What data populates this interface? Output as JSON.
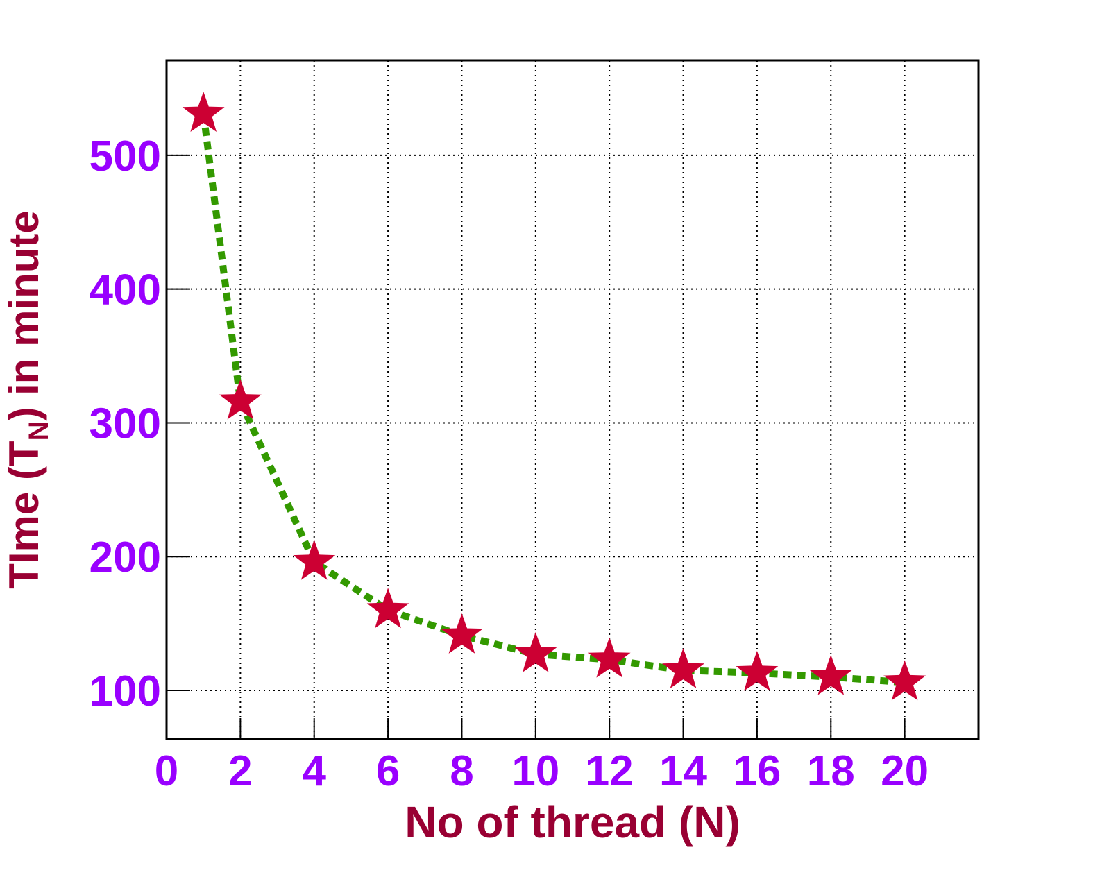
{
  "chart_data": {
    "type": "line",
    "x": [
      1,
      2,
      4,
      6,
      8,
      10,
      12,
      14,
      16,
      18,
      20
    ],
    "series": [
      {
        "color": "#cc0033",
        "line_color": "#339900",
        "values": [
          531,
          316,
          196,
          160,
          141,
          127,
          123,
          115,
          113,
          110,
          106
        ]
      }
    ],
    "xlim": [
      0,
      22
    ],
    "xticks": [
      0,
      2,
      4,
      6,
      8,
      10,
      12,
      14,
      16,
      18,
      20
    ],
    "ylim": [
      63.7,
      571
    ],
    "yticks": [
      100,
      200,
      300,
      400,
      500
    ],
    "grid": true,
    "xlabel": "No of thread (N)",
    "ylabel": {
      "text": "TIme (T",
      "subscript": "N",
      "suffix": ") in minute"
    },
    "tick_color": "#9900ff",
    "label_color": "#990033"
  }
}
